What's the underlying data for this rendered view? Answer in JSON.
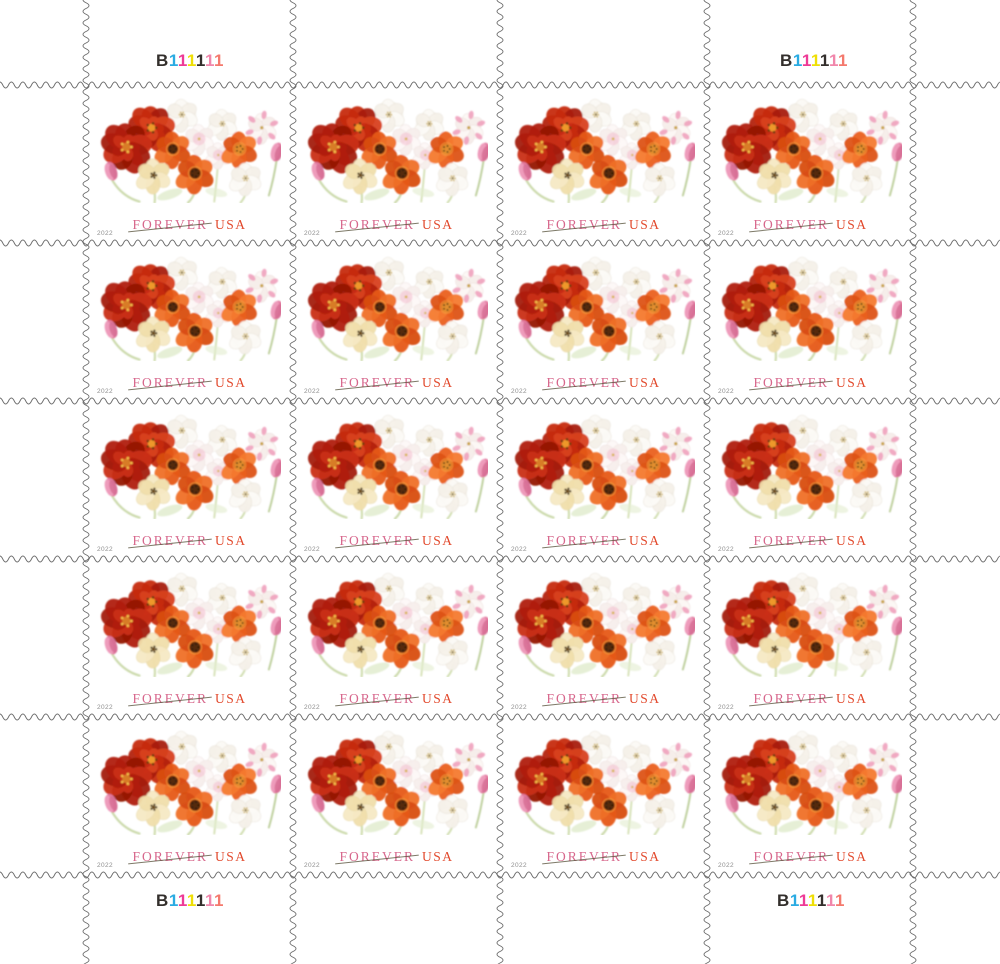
{
  "sheet": {
    "background": "#ffffff",
    "perforation_color": "#6a6a6a",
    "grid": {
      "columns": 4,
      "rows": 5
    },
    "stamp_count": 20
  },
  "stamp": {
    "illustration": "tulip-bouquet",
    "forever_label": "FOREVER",
    "usa_label": "USA",
    "year": "2022",
    "forever_color": "#d7678c",
    "usa_color": "#e2492c",
    "year_color": "#8f8f8f"
  },
  "plate_number": {
    "text": "B111111",
    "positions": [
      "top-left",
      "top-right",
      "bottom-left",
      "bottom-right"
    ],
    "chars": [
      {
        "ch": "B",
        "color": "#332f2c"
      },
      {
        "ch": "1",
        "color": "#2aabe2"
      },
      {
        "ch": "1",
        "color": "#ee3a96"
      },
      {
        "ch": "1",
        "color": "#efdf05"
      },
      {
        "ch": "1",
        "color": "#332f2c"
      },
      {
        "ch": "1",
        "color": "#f186ab"
      },
      {
        "ch": "1",
        "color": "#f4796d"
      }
    ]
  }
}
